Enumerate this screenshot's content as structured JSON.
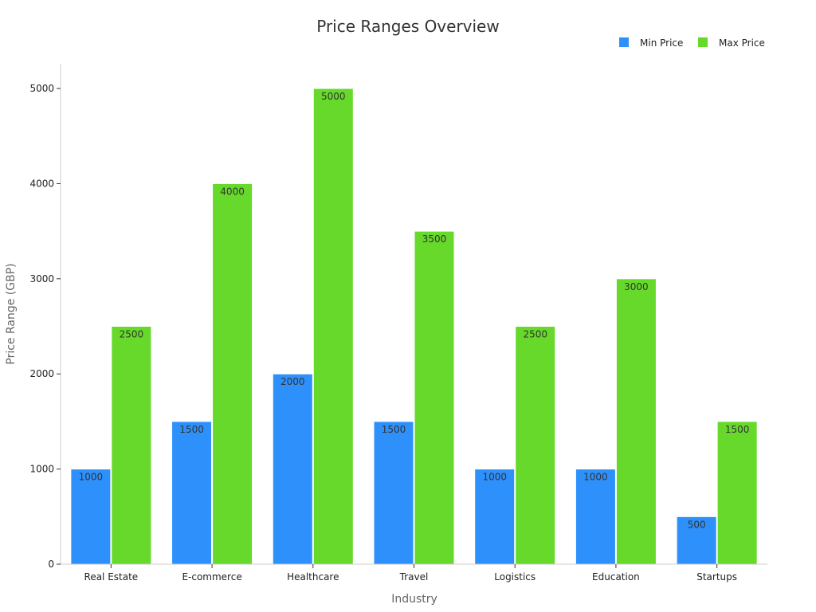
{
  "chart_data": {
    "type": "bar",
    "title": "Price Ranges Overview",
    "xlabel": "Industry",
    "ylabel": "Price Range (GBP)",
    "categories": [
      "Real Estate",
      "E-commerce",
      "Healthcare",
      "Travel",
      "Logistics",
      "Education",
      "Startups"
    ],
    "series": [
      {
        "name": "Min Price",
        "color": "#2e90fa",
        "values": [
          1000,
          1500,
          2000,
          1500,
          1000,
          1000,
          500
        ]
      },
      {
        "name": "Max Price",
        "color": "#66d92a",
        "values": [
          2500,
          4000,
          5000,
          3500,
          2500,
          3000,
          1500
        ]
      }
    ],
    "yticks": [
      0,
      1000,
      2000,
      3000,
      4000,
      5000
    ],
    "ylim": [
      0,
      5260
    ],
    "grid": false,
    "legend": "top-right",
    "data_labels": true
  }
}
